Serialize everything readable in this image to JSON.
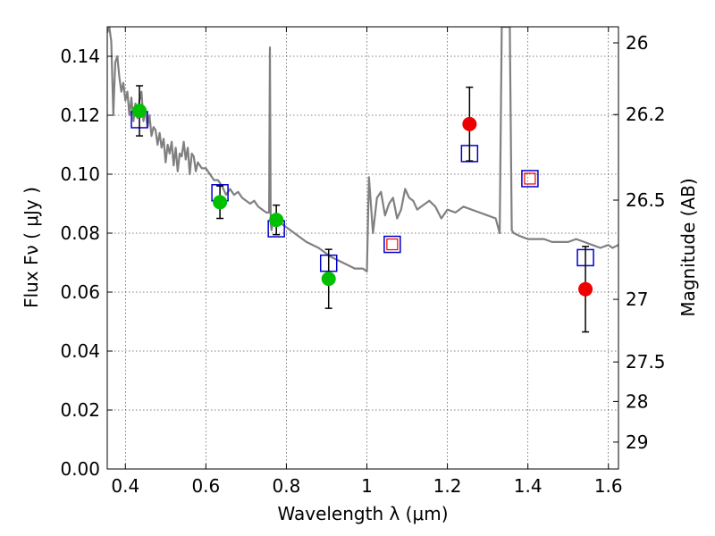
{
  "chart_data": {
    "type": "scatter",
    "xlabel": "Wavelength  λ (μm)",
    "ylabel": "Flux  Fν  ( μJy )",
    "y2label": "Magnitude (AB)",
    "xlim": [
      0.355,
      1.625
    ],
    "ylim": [
      0.0,
      0.15
    ],
    "grid": true,
    "x_ticks": [
      {
        "v": 0.4,
        "label": "0.4"
      },
      {
        "v": 0.6,
        "label": "0.6"
      },
      {
        "v": 0.8,
        "label": "0.8"
      },
      {
        "v": 1.0,
        "label": "1"
      },
      {
        "v": 1.2,
        "label": "1.2"
      },
      {
        "v": 1.4,
        "label": "1.4"
      },
      {
        "v": 1.6,
        "label": "1.6"
      }
    ],
    "y_ticks": [
      {
        "v": 0.0,
        "label": "0.00"
      },
      {
        "v": 0.02,
        "label": "0.02"
      },
      {
        "v": 0.04,
        "label": "0.04"
      },
      {
        "v": 0.06,
        "label": "0.06"
      },
      {
        "v": 0.08,
        "label": "0.08"
      },
      {
        "v": 0.1,
        "label": "0.10"
      },
      {
        "v": 0.12,
        "label": "0.12"
      },
      {
        "v": 0.14,
        "label": "0.14"
      }
    ],
    "y2_ticks": [
      {
        "mag": 26.0,
        "label": "26"
      },
      {
        "mag": 26.2,
        "label": "26.2"
      },
      {
        "mag": 26.5,
        "label": "26.5"
      },
      {
        "mag": 27.0,
        "label": "27"
      },
      {
        "mag": 27.5,
        "label": "27.5"
      },
      {
        "mag": 28.0,
        "label": "28"
      },
      {
        "mag": 29.0,
        "label": "29"
      }
    ],
    "series": [
      {
        "marker": "line",
        "color": "#808080",
        "x": [
          0.355,
          0.36,
          0.365,
          0.37,
          0.372,
          0.375,
          0.38,
          0.385,
          0.39,
          0.395,
          0.4,
          0.405,
          0.41,
          0.415,
          0.42,
          0.425,
          0.43,
          0.435,
          0.44,
          0.445,
          0.45,
          0.455,
          0.46,
          0.465,
          0.47,
          0.475,
          0.48,
          0.485,
          0.49,
          0.495,
          0.5,
          0.505,
          0.51,
          0.515,
          0.52,
          0.525,
          0.53,
          0.535,
          0.54,
          0.545,
          0.55,
          0.555,
          0.56,
          0.565,
          0.57,
          0.575,
          0.58,
          0.59,
          0.6,
          0.61,
          0.62,
          0.63,
          0.64,
          0.65,
          0.66,
          0.67,
          0.68,
          0.69,
          0.7,
          0.71,
          0.72,
          0.73,
          0.74,
          0.75,
          0.757,
          0.759,
          0.761,
          0.763,
          0.77,
          0.79,
          0.82,
          0.85,
          0.88,
          0.91,
          0.94,
          0.97,
          0.99,
          1.0,
          1.005,
          1.015,
          1.025,
          1.035,
          1.045,
          1.055,
          1.065,
          1.075,
          1.085,
          1.095,
          1.105,
          1.115,
          1.125,
          1.135,
          1.145,
          1.155,
          1.17,
          1.185,
          1.2,
          1.22,
          1.24,
          1.26,
          1.28,
          1.3,
          1.32,
          1.33,
          1.335,
          1.338,
          1.342,
          1.345,
          1.355,
          1.36,
          1.365,
          1.38,
          1.4,
          1.42,
          1.44,
          1.46,
          1.48,
          1.5,
          1.52,
          1.54,
          1.56,
          1.58,
          1.6,
          1.61,
          1.625
        ],
        "y": [
          0.148,
          0.15,
          0.145,
          0.12,
          0.128,
          0.138,
          0.14,
          0.133,
          0.128,
          0.131,
          0.125,
          0.128,
          0.12,
          0.126,
          0.118,
          0.124,
          0.119,
          0.125,
          0.128,
          0.118,
          0.122,
          0.116,
          0.12,
          0.113,
          0.116,
          0.115,
          0.11,
          0.114,
          0.109,
          0.112,
          0.104,
          0.11,
          0.107,
          0.111,
          0.103,
          0.109,
          0.101,
          0.107,
          0.106,
          0.111,
          0.105,
          0.109,
          0.1,
          0.107,
          0.106,
          0.101,
          0.104,
          0.102,
          0.102,
          0.1,
          0.098,
          0.098,
          0.096,
          0.093,
          0.095,
          0.093,
          0.094,
          0.092,
          0.091,
          0.09,
          0.091,
          0.089,
          0.088,
          0.087,
          0.087,
          0.143,
          0.083,
          0.081,
          0.086,
          0.083,
          0.08,
          0.077,
          0.075,
          0.072,
          0.07,
          0.068,
          0.068,
          0.067,
          0.099,
          0.08,
          0.092,
          0.094,
          0.086,
          0.09,
          0.092,
          0.085,
          0.088,
          0.095,
          0.092,
          0.091,
          0.088,
          0.089,
          0.09,
          0.091,
          0.089,
          0.085,
          0.088,
          0.087,
          0.089,
          0.088,
          0.087,
          0.086,
          0.085,
          0.08,
          0.15,
          0.15,
          0.15,
          0.15,
          0.15,
          0.081,
          0.08,
          0.079,
          0.078,
          0.078,
          0.078,
          0.077,
          0.077,
          0.077,
          0.078,
          0.077,
          0.076,
          0.075,
          0.076,
          0.075,
          0.076
        ]
      },
      {
        "marker": "open-square",
        "color": "#0000cc",
        "x": [
          0.435,
          0.635,
          0.775,
          0.905,
          1.063,
          1.255,
          1.405,
          1.543
        ],
        "y": [
          0.1185,
          0.0937,
          0.0815,
          0.0698,
          0.0762,
          0.107,
          0.0985,
          0.0717
        ]
      },
      {
        "marker": "filled-circle",
        "color": "#00c000",
        "x": [
          0.435,
          0.635,
          0.775,
          0.905
        ],
        "y": [
          0.1215,
          0.0905,
          0.0845,
          0.0645
        ],
        "err": [
          0.0085,
          0.0055,
          0.005,
          0.01
        ]
      },
      {
        "marker": "filled-circle",
        "color": "#ee0000",
        "x": [
          1.255,
          1.543
        ],
        "y": [
          0.117,
          0.061
        ],
        "err": [
          0.0125,
          0.0145
        ]
      },
      {
        "marker": "small-open-square",
        "color": "#ee0000",
        "x": [
          1.063,
          1.405
        ],
        "y": [
          0.0762,
          0.0985
        ]
      }
    ]
  }
}
